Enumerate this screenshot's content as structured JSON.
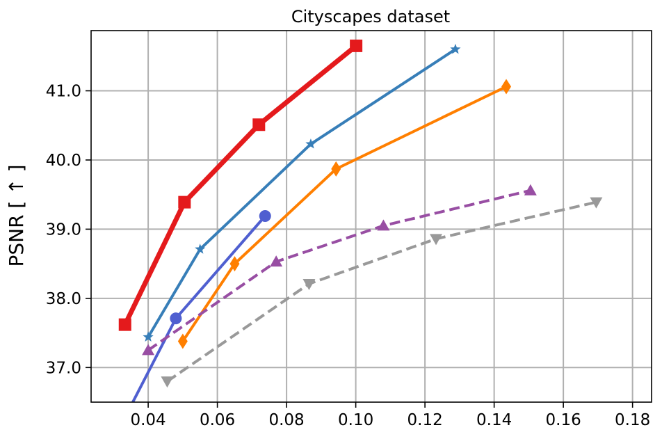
{
  "chart_data": {
    "type": "line",
    "title": "Cityscapes dataset",
    "xlabel": "",
    "ylabel": "PSNR [ ↑ ]",
    "xlim": [
      0.0235,
      0.1855
    ],
    "ylim": [
      36.5,
      41.87
    ],
    "xticks": [
      0.04,
      0.06,
      0.08,
      0.1,
      0.12,
      0.14,
      0.16,
      0.18
    ],
    "xtick_labels": [
      "0.04",
      "0.06",
      "0.08",
      "0.10",
      "0.12",
      "0.14",
      "0.16",
      "0.18"
    ],
    "yticks": [
      37.0,
      38.0,
      39.0,
      40.0,
      41.0
    ],
    "ytick_labels": [
      "37.0",
      "38.0",
      "39.0",
      "40.0",
      "41.0"
    ],
    "grid": true,
    "legend": null,
    "series": [
      {
        "color": "#e41a1c",
        "linestyle": "solid",
        "linewidth": 7,
        "marker": "square",
        "x": [
          0.0333,
          0.0505,
          0.072,
          0.1001
        ],
        "y": [
          37.62,
          39.39,
          40.51,
          41.65
        ]
      },
      {
        "color": "#377eb8",
        "linestyle": "solid",
        "linewidth": 4,
        "marker": "star",
        "x": [
          0.04,
          0.055,
          0.087,
          0.1288
        ],
        "y": [
          37.44,
          38.71,
          40.23,
          41.6
        ]
      },
      {
        "color": "#ff7f00",
        "linestyle": "solid",
        "linewidth": 4,
        "marker": "diamond",
        "x": [
          0.05,
          0.065,
          0.0943,
          0.1435
        ],
        "y": [
          37.38,
          38.5,
          39.87,
          41.06
        ]
      },
      {
        "color": "#4f5fd0",
        "linestyle": "solid",
        "linewidth": 4,
        "marker": "circle",
        "x": [
          0.0335,
          0.048,
          0.0738
        ],
        "y": [
          36.3,
          37.71,
          39.19
        ]
      },
      {
        "color": "#984ea3",
        "linestyle": "dashed",
        "linewidth": 4,
        "marker": "triangle-up",
        "x": [
          0.04,
          0.077,
          0.108,
          0.1505
        ],
        "y": [
          37.25,
          38.53,
          39.05,
          39.56
        ]
      },
      {
        "color": "#999999",
        "linestyle": "dashed",
        "linewidth": 4,
        "marker": "triangle-down",
        "x": [
          0.0455,
          0.0865,
          0.1232,
          0.1695
        ],
        "y": [
          36.8,
          38.21,
          38.86,
          39.39
        ]
      }
    ]
  }
}
